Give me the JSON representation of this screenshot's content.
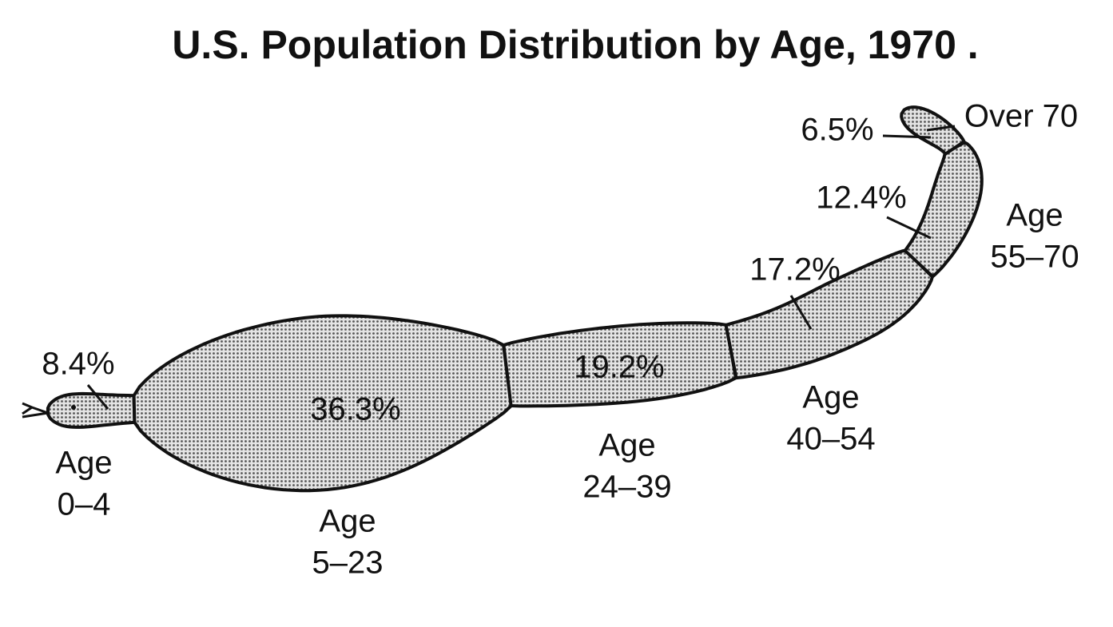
{
  "chart_data": {
    "type": "snake",
    "title": "U.S. Population Distribution by Age, 1970 .",
    "categories": [
      [
        "Age",
        "0–4"
      ],
      [
        "Age",
        "5–23"
      ],
      [
        "Age",
        "24–39"
      ],
      [
        "Age",
        "40–54"
      ],
      [
        "Age",
        "55–70"
      ],
      [
        "Over 70"
      ]
    ],
    "values": [
      8.4,
      36.3,
      19.2,
      17.2,
      12.4,
      6.5
    ],
    "value_labels": [
      "8.4%",
      "36.3%",
      "19.2%",
      "17.2%",
      "12.4%",
      "6.5%"
    ],
    "color": "#b8b8b8"
  }
}
